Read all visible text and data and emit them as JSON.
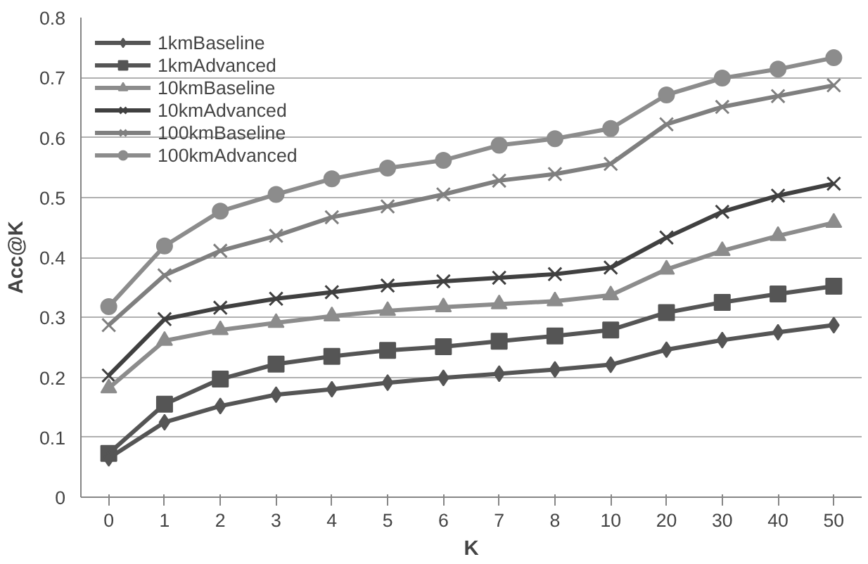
{
  "chart_data": {
    "type": "line",
    "xlabel": "K",
    "ylabel": "Acc@K",
    "categories": [
      "0",
      "1",
      "2",
      "3",
      "4",
      "5",
      "6",
      "7",
      "8",
      "10",
      "20",
      "30",
      "40",
      "50"
    ],
    "series": [
      {
        "name": "1kmBaseline",
        "color": "#555555",
        "marker": "diamond",
        "values": [
          0.065,
          0.125,
          0.152,
          0.171,
          0.18,
          0.191,
          0.199,
          0.206,
          0.213,
          0.221,
          0.246,
          0.262,
          0.275,
          0.287
        ]
      },
      {
        "name": "1kmAdvanced",
        "color": "#555555",
        "marker": "square",
        "values": [
          0.073,
          0.155,
          0.197,
          0.222,
          0.235,
          0.245,
          0.251,
          0.26,
          0.269,
          0.279,
          0.308,
          0.325,
          0.339,
          0.352
        ]
      },
      {
        "name": "10kmBaseline",
        "color": "#8c8c8c",
        "marker": "triangle",
        "values": [
          0.182,
          0.261,
          0.279,
          0.291,
          0.302,
          0.311,
          0.317,
          0.322,
          0.327,
          0.337,
          0.38,
          0.411,
          0.436,
          0.458
        ]
      },
      {
        "name": "10kmAdvanced",
        "color": "#404040",
        "marker": "cross",
        "values": [
          0.203,
          0.297,
          0.316,
          0.331,
          0.342,
          0.353,
          0.36,
          0.366,
          0.372,
          0.383,
          0.433,
          0.476,
          0.503,
          0.523
        ]
      },
      {
        "name": "100kmBaseline",
        "color": "#7f7f7f",
        "marker": "cross",
        "values": [
          0.287,
          0.37,
          0.411,
          0.436,
          0.467,
          0.485,
          0.505,
          0.528,
          0.539,
          0.556,
          0.622,
          0.651,
          0.669,
          0.687
        ]
      },
      {
        "name": "100kmAdvanced",
        "color": "#8c8c8c",
        "marker": "circle",
        "values": [
          0.318,
          0.419,
          0.477,
          0.505,
          0.531,
          0.549,
          0.562,
          0.587,
          0.598,
          0.615,
          0.671,
          0.699,
          0.714,
          0.733
        ]
      }
    ],
    "ylim": [
      0,
      0.8
    ],
    "yticks": [
      0,
      0.1,
      0.2,
      0.3,
      0.4,
      0.5,
      0.6,
      0.7,
      0.8
    ],
    "grid": "y",
    "legend": "top left",
    "line_style": "solid"
  }
}
